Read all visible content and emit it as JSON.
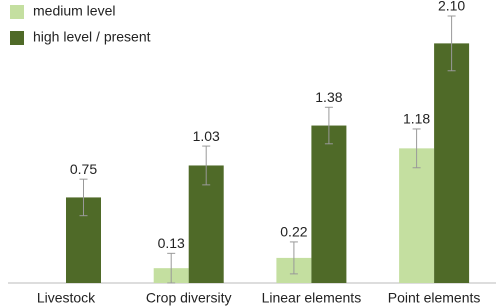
{
  "chart_data": {
    "type": "bar",
    "categories": [
      "Livestock",
      "Crop diversity",
      "Linear elements",
      "Point elements"
    ],
    "series": [
      {
        "name": "medium level",
        "color": "#c4dfa0",
        "values": [
          null,
          0.13,
          0.22,
          1.18
        ],
        "value_labels": [
          null,
          "0.13",
          "0.22",
          "1.18"
        ],
        "errors": [
          null,
          0.13,
          0.14,
          0.17
        ]
      },
      {
        "name": "high level / present",
        "color": "#4f6a28",
        "values": [
          0.75,
          1.03,
          1.38,
          2.1
        ],
        "value_labels": [
          "0.75",
          "1.03",
          "1.38",
          "2.10"
        ],
        "errors": [
          0.16,
          0.17,
          0.16,
          0.24
        ]
      }
    ]
  }
}
